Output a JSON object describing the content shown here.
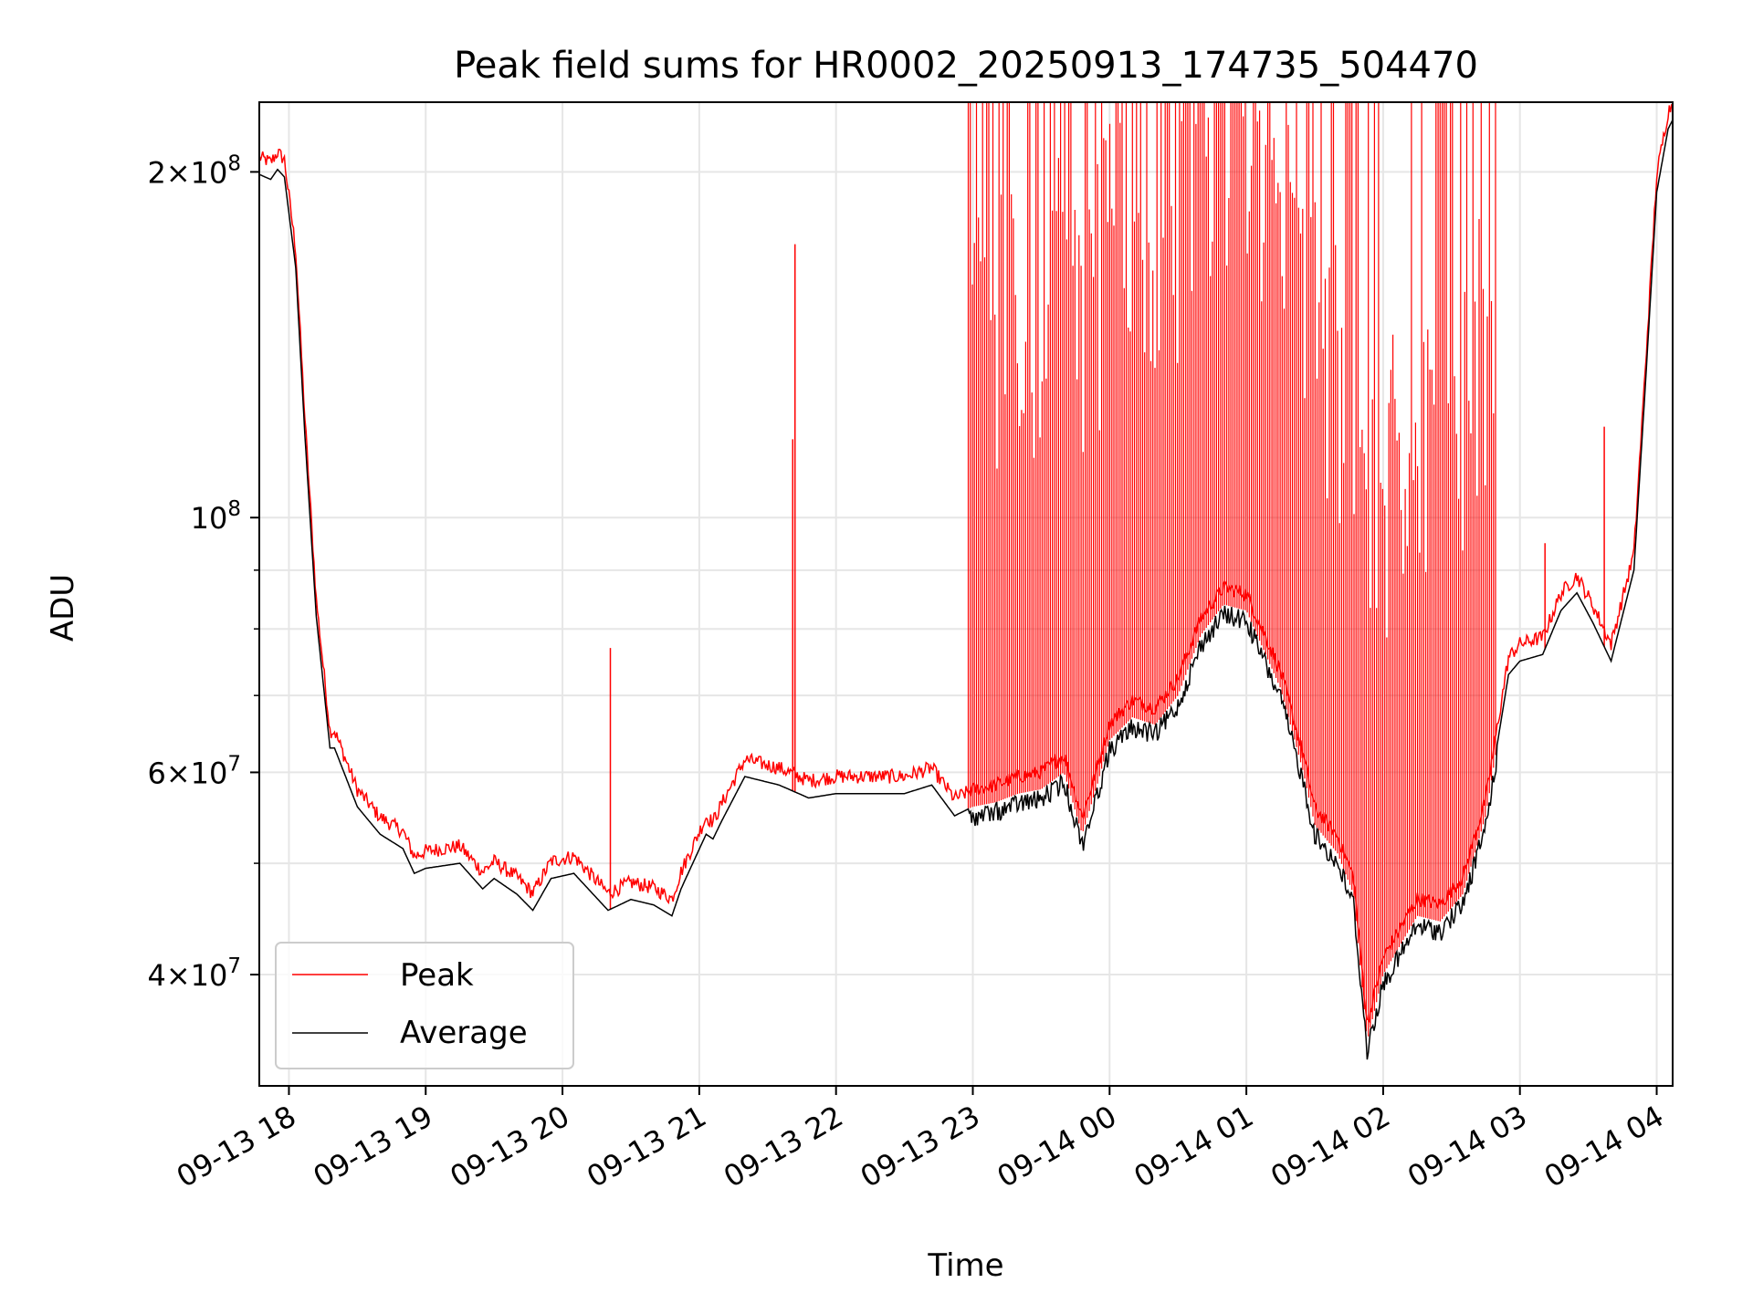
{
  "chart_data": {
    "type": "line",
    "title": "Peak field sums for HR0002_20250913_174735_504470",
    "xlabel": "Time",
    "ylabel": "ADU",
    "y_scale": "log",
    "x_range": [
      "2025-09-13 17:47",
      "2025-09-14 04:07"
    ],
    "y_range": [
      32000000,
      230000000
    ],
    "grid": true,
    "legend_position": "lower-left",
    "x_ticks": [
      {
        "t": "2025-09-13 18:00",
        "label": "09-13 18"
      },
      {
        "t": "2025-09-13 19:00",
        "label": "09-13 19"
      },
      {
        "t": "2025-09-13 20:00",
        "label": "09-13 20"
      },
      {
        "t": "2025-09-13 21:00",
        "label": "09-13 21"
      },
      {
        "t": "2025-09-13 22:00",
        "label": "09-13 22"
      },
      {
        "t": "2025-09-13 23:00",
        "label": "09-13 23"
      },
      {
        "t": "2025-09-14 00:00",
        "label": "09-14 00"
      },
      {
        "t": "2025-09-14 01:00",
        "label": "09-14 01"
      },
      {
        "t": "2025-09-14 02:00",
        "label": "09-14 02"
      },
      {
        "t": "2025-09-14 03:00",
        "label": "09-14 03"
      },
      {
        "t": "2025-09-14 04:00",
        "label": "09-14 04"
      }
    ],
    "y_ticks_major": [
      {
        "v": 40000000,
        "mant": "4",
        "exp": "7"
      },
      {
        "v": 60000000,
        "mant": "6",
        "exp": "7"
      },
      {
        "v": 100000000,
        "mant": "",
        "exp": "8"
      },
      {
        "v": 200000000,
        "mant": "2",
        "exp": "8"
      }
    ],
    "y_ticks_minor": [
      50000000,
      70000000,
      80000000,
      90000000
    ],
    "series": [
      {
        "name": "Average",
        "color": "#000000",
        "x": [
          "2025-09-13 17:47",
          "2025-09-13 17:52",
          "2025-09-13 17:55",
          "2025-09-13 17:58",
          "2025-09-13 18:03",
          "2025-09-13 18:07",
          "2025-09-13 18:12",
          "2025-09-13 18:18",
          "2025-09-13 18:20",
          "2025-09-13 18:30",
          "2025-09-13 18:40",
          "2025-09-13 18:50",
          "2025-09-13 18:55",
          "2025-09-13 19:00",
          "2025-09-13 19:15",
          "2025-09-13 19:25",
          "2025-09-13 19:30",
          "2025-09-13 19:40",
          "2025-09-13 19:47",
          "2025-09-13 19:55",
          "2025-09-13 20:05",
          "2025-09-13 20:20",
          "2025-09-13 20:30",
          "2025-09-13 20:40",
          "2025-09-13 20:48",
          "2025-09-13 20:52",
          "2025-09-13 21:03",
          "2025-09-13 21:06",
          "2025-09-13 21:10",
          "2025-09-13 21:20",
          "2025-09-13 21:35",
          "2025-09-13 21:48",
          "2025-09-13 22:00",
          "2025-09-13 22:30",
          "2025-09-13 22:42",
          "2025-09-13 22:52",
          "2025-09-13 23:00",
          "2025-09-13 23:10",
          "2025-09-13 23:20",
          "2025-09-13 23:30",
          "2025-09-13 23:40",
          "2025-09-13 23:48",
          "2025-09-13 23:54",
          "2025-09-14 00:00",
          "2025-09-14 00:10",
          "2025-09-14 00:20",
          "2025-09-14 00:30",
          "2025-09-14 00:40",
          "2025-09-14 00:50",
          "2025-09-14 01:00",
          "2025-09-14 01:15",
          "2025-09-14 01:25",
          "2025-09-14 01:30",
          "2025-09-14 01:40",
          "2025-09-14 01:47",
          "2025-09-14 01:53",
          "2025-09-14 02:00",
          "2025-09-14 02:15",
          "2025-09-14 02:25",
          "2025-09-14 02:35",
          "2025-09-14 02:45",
          "2025-09-14 02:55",
          "2025-09-14 03:00",
          "2025-09-14 03:10",
          "2025-09-14 03:18",
          "2025-09-14 03:25",
          "2025-09-14 03:32",
          "2025-09-14 03:40",
          "2025-09-14 03:50",
          "2025-09-14 03:55",
          "2025-09-14 04:00",
          "2025-09-14 04:05",
          "2025-09-14 04:07"
        ],
        "values": [
          199000000,
          197000000,
          201000000,
          198000000,
          165000000,
          118000000,
          82000000,
          63000000,
          63000000,
          56000000,
          53000000,
          51500000,
          49000000,
          49500000,
          50000000,
          47500000,
          48500000,
          47000000,
          45500000,
          48500000,
          49000000,
          45500000,
          46500000,
          46000000,
          45000000,
          47500000,
          53000000,
          52500000,
          54500000,
          59500000,
          58500000,
          57000000,
          57500000,
          57500000,
          58500000,
          55000000,
          56000000,
          56500000,
          57500000,
          58000000,
          60000000,
          53000000,
          58000000,
          64000000,
          67000000,
          66000000,
          70000000,
          79000000,
          84000000,
          83000000,
          71000000,
          60000000,
          54000000,
          51000000,
          47000000,
          35000000,
          40000000,
          45000000,
          44500000,
          47000000,
          55000000,
          73000000,
          75000000,
          76000000,
          83000000,
          86000000,
          81000000,
          75000000,
          90000000,
          130000000,
          192000000,
          218000000,
          222000000
        ]
      },
      {
        "name": "Peak",
        "color": "#ff0000",
        "spikes": [
          {
            "t": "2025-09-13 20:21",
            "v": 77000000
          },
          {
            "t": "2025-09-13 21:41",
            "v": 117000000
          },
          {
            "t": "2025-09-13 21:42",
            "v": 173000000
          },
          {
            "t": "2025-09-14 03:11",
            "v": 95000000
          },
          {
            "t": "2025-09-14 03:37",
            "v": 120000000
          }
        ],
        "dense_spike_band": {
          "start": "2025-09-13 22:58",
          "end": "2025-09-14 02:50",
          "max": 230000000
        }
      }
    ]
  }
}
